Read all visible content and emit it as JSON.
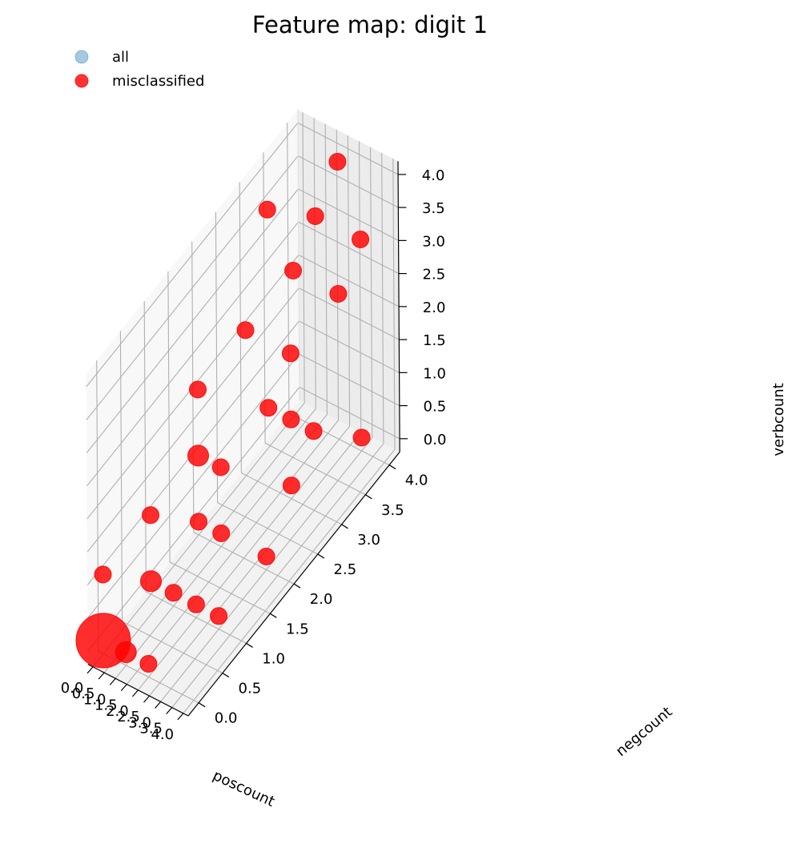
{
  "chart_data": {
    "type": "scatter",
    "title": "Feature map: digit 1",
    "xlabel": "poscount",
    "ylabel": "negcount",
    "zlabel": "verbcount",
    "xlim": [
      0,
      4
    ],
    "ylim": [
      0,
      4
    ],
    "zlim": [
      0,
      4
    ],
    "ticks": [
      0.0,
      0.5,
      1.0,
      1.5,
      2.0,
      2.5,
      3.0,
      3.5,
      4.0
    ],
    "tick_labels": [
      "0.0",
      "0.5",
      "1.0",
      "1.5",
      "2.0",
      "2.5",
      "3.0",
      "3.5",
      "4.0"
    ],
    "grid": true,
    "legend_position": "top-left",
    "colors": {
      "all": "#1f77b4",
      "misclassified": "#ff0000"
    },
    "series": [
      {
        "name": "all",
        "points": []
      },
      {
        "name": "misclassified",
        "points": [
          {
            "x": 0,
            "y": 0,
            "z": 0,
            "n": 12
          },
          {
            "x": 1,
            "y": 0,
            "z": 0,
            "n": 2
          },
          {
            "x": 2,
            "y": 0,
            "z": 0,
            "n": 1
          },
          {
            "x": 0,
            "y": 1,
            "z": 0,
            "n": 2
          },
          {
            "x": 1,
            "y": 1,
            "z": 0,
            "n": 1
          },
          {
            "x": 2,
            "y": 1,
            "z": 0,
            "n": 1
          },
          {
            "x": 3,
            "y": 1,
            "z": 0,
            "n": 1
          },
          {
            "x": 0,
            "y": 2,
            "z": 0,
            "n": 1
          },
          {
            "x": 1,
            "y": 2,
            "z": 0,
            "n": 1
          },
          {
            "x": 3,
            "y": 2,
            "z": 0,
            "n": 1
          },
          {
            "x": 2,
            "y": 3,
            "z": 0,
            "n": 1
          },
          {
            "x": 3,
            "y": 4,
            "z": 0,
            "n": 1
          },
          {
            "x": 0,
            "y": 0,
            "z": 1,
            "n": 1
          },
          {
            "x": 0,
            "y": 1,
            "z": 1,
            "n": 1
          },
          {
            "x": 0,
            "y": 2,
            "z": 1,
            "n": 2
          },
          {
            "x": 1,
            "y": 2,
            "z": 1,
            "n": 1
          },
          {
            "x": 1,
            "y": 3,
            "z": 1,
            "n": 1
          },
          {
            "x": 2,
            "y": 3,
            "z": 1,
            "n": 1
          },
          {
            "x": 3,
            "y": 3,
            "z": 1,
            "n": 1
          },
          {
            "x": 0,
            "y": 2,
            "z": 2,
            "n": 1
          },
          {
            "x": 0,
            "y": 3,
            "z": 2,
            "n": 1
          },
          {
            "x": 0,
            "y": 4,
            "z": 2,
            "n": 1
          },
          {
            "x": 2,
            "y": 3,
            "z": 2,
            "n": 1
          },
          {
            "x": 2,
            "y": 4,
            "z": 2,
            "n": 1
          },
          {
            "x": 1,
            "y": 4,
            "z": 3,
            "n": 1
          },
          {
            "x": 3,
            "y": 4,
            "z": 3,
            "n": 1
          },
          {
            "x": 1,
            "y": 3,
            "z": 4,
            "n": 1
          },
          {
            "x": 2,
            "y": 4,
            "z": 4,
            "n": 1
          }
        ]
      }
    ]
  }
}
